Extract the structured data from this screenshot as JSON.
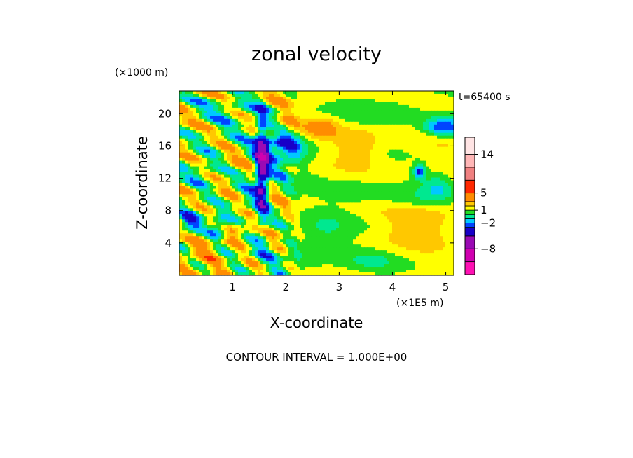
{
  "chart_data": {
    "type": "heatmap",
    "title": "zonal velocity",
    "xlabel": "X-coordinate",
    "ylabel": "Z-coordinate",
    "x_unit": "(×1E5 m)",
    "y_unit": "(×1000 m)",
    "time_label": "t=65400 s",
    "footer": "CONTOUR INTERVAL = 1.000E+00",
    "xlim": [
      0,
      5.15
    ],
    "ylim": [
      0,
      22.8
    ],
    "x_ticks": [
      1,
      2,
      3,
      4,
      5
    ],
    "x_tick_labels": [
      "1",
      "2",
      "3",
      "4",
      "5"
    ],
    "y_ticks": [
      4,
      8,
      12,
      16,
      20
    ],
    "y_tick_labels": [
      "4",
      "8",
      "12",
      "16",
      "20"
    ],
    "contour_interval": 1.0,
    "colorbar": {
      "bands": [
        {
          "range": [
            -14,
            -11
          ],
          "color": "#ff10b4"
        },
        {
          "range": [
            -11,
            -8
          ],
          "color": "#d000b0"
        },
        {
          "range": [
            -8,
            -5
          ],
          "color": "#9a0ab4"
        },
        {
          "range": [
            -5,
            -3
          ],
          "color": "#1800c8"
        },
        {
          "range": [
            -3,
            -2
          ],
          "color": "#0044ff"
        },
        {
          "range": [
            -2,
            -1
          ],
          "color": "#00c8ff"
        },
        {
          "range": [
            -1,
            0
          ],
          "color": "#00e890"
        },
        {
          "range": [
            0,
            1
          ],
          "color": "#22dc22"
        },
        {
          "range": [
            1,
            2
          ],
          "color": "#ffff00"
        },
        {
          "range": [
            2,
            3
          ],
          "color": "#ffc800"
        },
        {
          "range": [
            3,
            5
          ],
          "color": "#ff8c00"
        },
        {
          "range": [
            5,
            8
          ],
          "color": "#ff2800"
        },
        {
          "range": [
            8,
            11
          ],
          "color": "#f08080"
        },
        {
          "range": [
            11,
            14
          ],
          "color": "#ffb6b6"
        },
        {
          "range": [
            14,
            18
          ],
          "color": "#ffe4e4"
        }
      ],
      "tick_values": [
        14,
        5,
        1,
        -2,
        -8
      ],
      "tick_labels": [
        "14",
        "5",
        "1",
        "−2",
        "−8"
      ]
    },
    "background_value": 1.2,
    "features": [
      {
        "x": 1.55,
        "z": 12.8,
        "sx": 0.09,
        "sz": 4.5,
        "amp": -7
      },
      {
        "x": 1.95,
        "z": 15.8,
        "sx": 0.28,
        "sz": 1.6,
        "amp": -4.5
      },
      {
        "x": 0.75,
        "z": 5.8,
        "sx": 0.13,
        "sz": 0.9,
        "amp": -4
      },
      {
        "x": 0.18,
        "z": 6.3,
        "sx": 0.16,
        "sz": 1.0,
        "amp": -3.5
      },
      {
        "x": 4.95,
        "z": 18.3,
        "sx": 0.28,
        "sz": 0.8,
        "amp": -4.5
      },
      {
        "x": 4.5,
        "z": 12.8,
        "sx": 0.08,
        "sz": 0.6,
        "amp": -4.5
      },
      {
        "x": 2.65,
        "z": 18.2,
        "sx": 0.22,
        "sz": 0.8,
        "amp": 3
      },
      {
        "x": 2.0,
        "z": 18.5,
        "sx": 0.2,
        "sz": 0.7,
        "amp": 2.5
      },
      {
        "x": 3.35,
        "z": 16.0,
        "sx": 0.3,
        "sz": 1.5,
        "amp": 1.8
      },
      {
        "x": 4.55,
        "z": 6.3,
        "sx": 0.5,
        "sz": 1.8,
        "amp": 1.6
      },
      {
        "x": 4.65,
        "z": 16.0,
        "sx": 0.6,
        "sz": 2.5,
        "amp": 0.5
      },
      {
        "x": 1.1,
        "z": 6.0,
        "sx": 0.2,
        "sz": 1.2,
        "amp": 1.8
      },
      {
        "x": 0.5,
        "z": 3.2,
        "sx": 0.3,
        "sz": 1.4,
        "amp": 1.5
      },
      {
        "x": 2.7,
        "z": 4.5,
        "sx": 0.3,
        "sz": 2.0,
        "amp": -1.3
      },
      {
        "x": 2.0,
        "z": 2.2,
        "sx": 0.35,
        "sz": 1.5,
        "amp": -1.2
      },
      {
        "x": 3.6,
        "z": 1.8,
        "sx": 0.3,
        "sz": 0.8,
        "amp": -1.1
      },
      {
        "x": 3.3,
        "z": 10.2,
        "sx": 0.3,
        "sz": 1.0,
        "amp": -1.1
      },
      {
        "x": 4.3,
        "z": 9.3,
        "sx": 0.4,
        "sz": 0.8,
        "amp": -1.2
      },
      {
        "x": 4.0,
        "z": 20.5,
        "sx": 0.5,
        "sz": 1.2,
        "amp": -1.0
      },
      {
        "x": 4.85,
        "z": 11.0,
        "sx": 0.2,
        "sz": 1.2,
        "amp": -2.0
      },
      {
        "x": 0.5,
        "z": 13.5,
        "sx": 0.2,
        "sz": 1.5,
        "amp": -1.5
      },
      {
        "x": 0.8,
        "z": 19.5,
        "sx": 0.4,
        "sz": 1.5,
        "amp": -1.2
      },
      {
        "x": 1.25,
        "z": 9.5,
        "sx": 0.15,
        "sz": 1.5,
        "amp": -2.0
      }
    ],
    "wave_region": {
      "x_max": 2.3,
      "amplitude": 2.2,
      "x_wavenumber": 9.0,
      "z_wavenumber": 1.3,
      "tilt": 0.45
    }
  }
}
